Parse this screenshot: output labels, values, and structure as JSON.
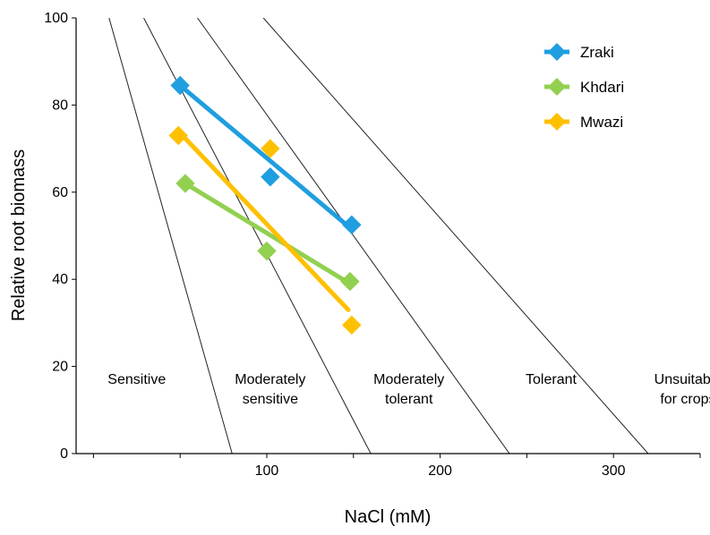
{
  "chart_data": {
    "type": "scatter",
    "xlabel": "NaCl (mM)",
    "ylabel": "Relative root biomass",
    "xlim": [
      -10,
      350
    ],
    "ylim": [
      0,
      100
    ],
    "xticks": [
      0,
      50,
      100,
      150,
      200,
      250,
      300,
      350
    ],
    "xtick_labels": [
      "",
      "",
      "100",
      "",
      "200",
      "",
      "300",
      ""
    ],
    "yticks": [
      0,
      20,
      40,
      60,
      80,
      100
    ],
    "ytick_labels": [
      "0",
      "20",
      "40",
      "60",
      "80",
      "100"
    ],
    "grid": false,
    "legend": "top-right",
    "series": [
      {
        "name": "Zraki",
        "color": "#1f9ee0",
        "points": [
          [
            50,
            84.5
          ],
          [
            102,
            63.5
          ],
          [
            149,
            52.5
          ]
        ],
        "trend": [
          [
            50,
            84.5
          ],
          [
            149,
            51.5
          ]
        ]
      },
      {
        "name": "Khdari",
        "color": "#92d050",
        "points": [
          [
            53,
            62
          ],
          [
            100,
            46.5
          ],
          [
            148,
            39.5
          ]
        ],
        "trend": [
          [
            53,
            62
          ],
          [
            148,
            39
          ]
        ]
      },
      {
        "name": "Mwazi",
        "color": "#ffc000",
        "points": [
          [
            49,
            73
          ],
          [
            102,
            70
          ],
          [
            149,
            29.5
          ]
        ],
        "trend": [
          [
            49,
            74
          ],
          [
            147,
            33
          ]
        ]
      }
    ],
    "boundaries": [
      {
        "from": [
          9,
          100
        ],
        "to": [
          80,
          0
        ]
      },
      {
        "from": [
          29,
          100
        ],
        "to": [
          160,
          0
        ]
      },
      {
        "from": [
          60,
          100
        ],
        "to": [
          240,
          0
        ]
      },
      {
        "from": [
          98,
          100
        ],
        "to": [
          320,
          0
        ]
      }
    ],
    "zones": [
      {
        "lines": [
          "Sensitive"
        ],
        "x": 25,
        "y": 16
      },
      {
        "lines": [
          "Moderately",
          "sensitive"
        ],
        "x": 102,
        "y": 16
      },
      {
        "lines": [
          "Moderately",
          "tolerant"
        ],
        "x": 182,
        "y": 16
      },
      {
        "lines": [
          "Tolerant"
        ],
        "x": 264,
        "y": 16
      },
      {
        "lines": [
          "Unsuitable",
          "for crops"
        ],
        "x": 343,
        "y": 16
      }
    ]
  }
}
